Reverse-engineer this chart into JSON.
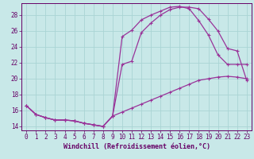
{
  "xlabel": "Windchill (Refroidissement éolien,°C)",
  "bg_color": "#c8e8e8",
  "grid_color": "#aad4d4",
  "line_color": "#993399",
  "text_color": "#660066",
  "axis_color": "#660066",
  "xlim": [
    -0.5,
    23.5
  ],
  "ylim": [
    13.5,
    29.5
  ],
  "xticks": [
    0,
    1,
    2,
    3,
    4,
    5,
    6,
    7,
    8,
    9,
    10,
    11,
    12,
    13,
    14,
    15,
    16,
    17,
    18,
    19,
    20,
    21,
    22,
    23
  ],
  "yticks": [
    14,
    16,
    18,
    20,
    22,
    24,
    26,
    28
  ],
  "curve1_x": [
    0,
    1,
    2,
    3,
    4,
    5,
    6,
    7,
    8,
    9,
    10,
    11,
    12,
    13,
    14,
    15,
    16,
    17,
    18,
    19,
    20,
    21,
    22,
    23
  ],
  "curve1_y": [
    16.6,
    15.5,
    15.1,
    14.8,
    14.8,
    14.7,
    14.4,
    14.2,
    14.0,
    15.3,
    25.3,
    26.1,
    27.4,
    28.0,
    28.5,
    29.0,
    29.1,
    28.8,
    27.3,
    25.5,
    23.0,
    21.8,
    21.8,
    21.8
  ],
  "curve2_x": [
    0,
    1,
    2,
    3,
    4,
    5,
    6,
    7,
    8,
    9,
    10,
    11,
    12,
    13,
    14,
    15,
    16,
    17,
    18,
    19,
    20,
    21,
    22,
    23
  ],
  "curve2_y": [
    16.6,
    15.5,
    15.1,
    14.8,
    14.8,
    14.7,
    14.4,
    14.2,
    14.0,
    15.3,
    21.8,
    22.2,
    25.8,
    27.0,
    28.0,
    28.7,
    29.0,
    29.0,
    28.8,
    27.5,
    26.0,
    23.8,
    23.5,
    19.8
  ],
  "curve3_x": [
    0,
    1,
    2,
    3,
    4,
    5,
    6,
    7,
    8,
    9,
    10,
    11,
    12,
    13,
    14,
    15,
    16,
    17,
    18,
    19,
    20,
    21,
    22,
    23
  ],
  "curve3_y": [
    16.6,
    15.5,
    15.1,
    14.8,
    14.8,
    14.7,
    14.4,
    14.2,
    14.0,
    15.3,
    15.8,
    16.3,
    16.8,
    17.3,
    17.8,
    18.3,
    18.8,
    19.3,
    19.8,
    20.0,
    20.2,
    20.3,
    20.2,
    20.0
  ],
  "marker": "+",
  "marker_size": 3,
  "line_width": 0.9,
  "font_size_label": 6,
  "font_size_tick": 5.5
}
